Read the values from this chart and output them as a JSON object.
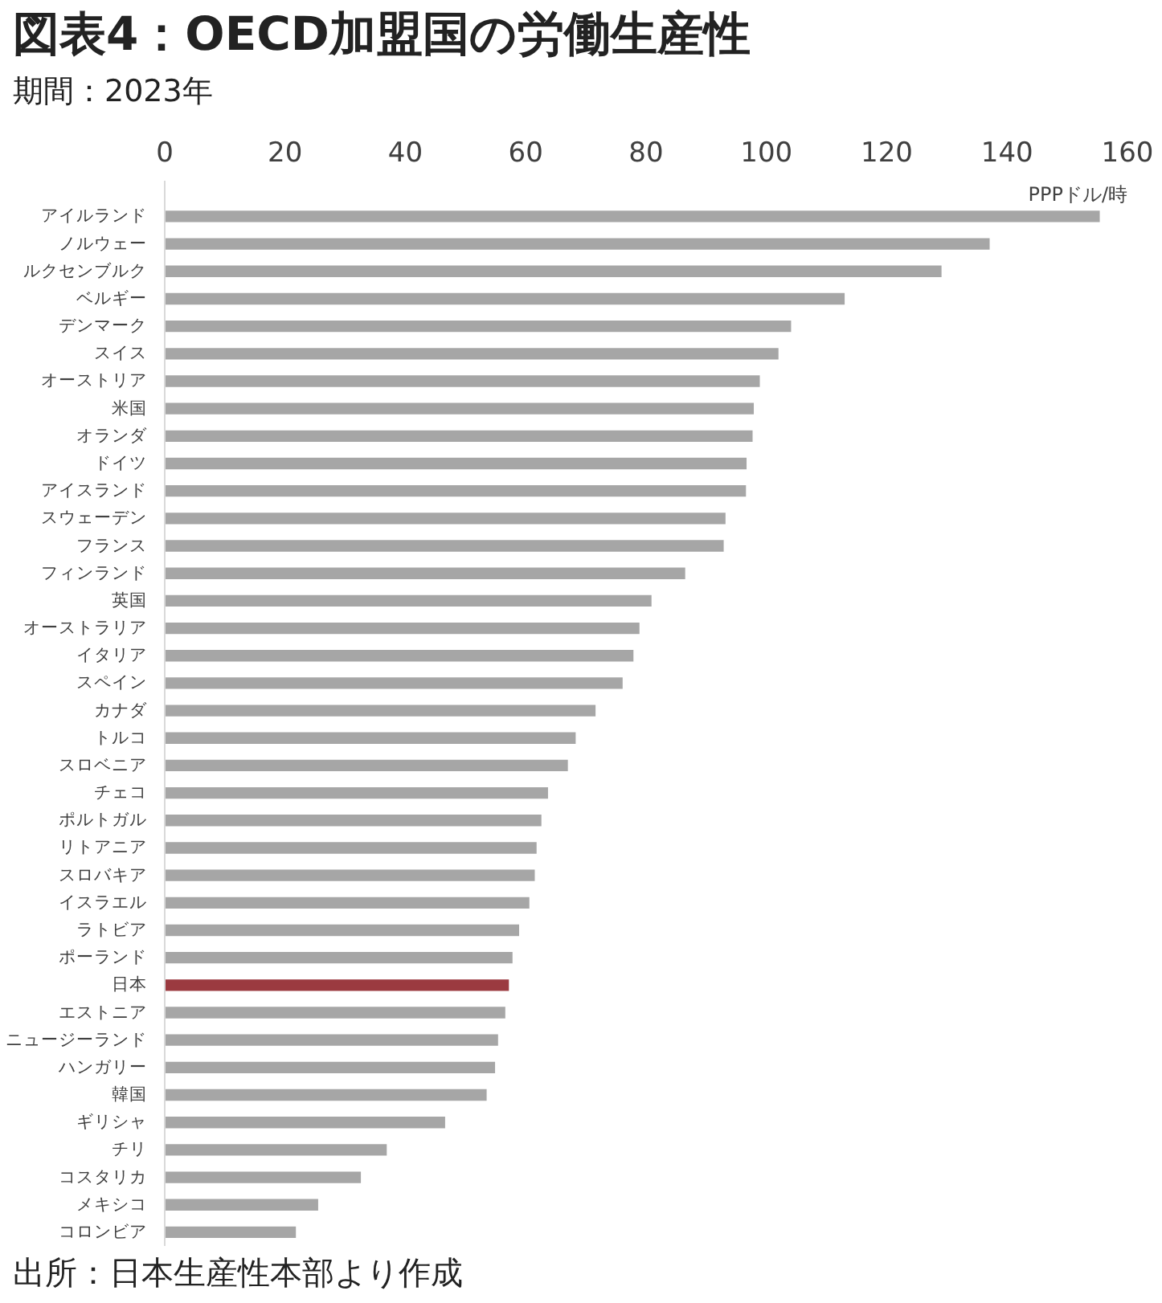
{
  "chart_data": {
    "type": "bar",
    "orientation": "horizontal",
    "title": "図表4：OECD加盟国の労働生産性",
    "subtitle": "期間：2023年",
    "xlabel": "PPPドル/時",
    "annotations": [
      "出所：日本生産性本部より作成"
    ],
    "categories": [
      "アイルランド",
      "ノルウェー",
      "ルクセンブルク",
      "ベルギー",
      "デンマーク",
      "スイス",
      "オーストリア",
      "米国",
      "オランダ",
      "ドイツ",
      "アイスランド",
      "スウェーデン",
      "フランス",
      "フィンランド",
      "英国",
      "オーストラリア",
      "イタリア",
      "スペイン",
      "カナダ",
      "トルコ",
      "スロベニア",
      "チェコ",
      "ポルトガル",
      "リトアニア",
      "スロバキア",
      "イスラエル",
      "ラトビア",
      "ポーランド",
      "日本",
      "エストニア",
      "ニュージーランド",
      "ハンガリー",
      "韓国",
      "ギリシャ",
      "チリ",
      "コスタリカ",
      "メキシコ",
      "コロンビア"
    ],
    "values": [
      155.4,
      137.1,
      129.1,
      113.0,
      104.1,
      102.0,
      98.9,
      97.9,
      97.7,
      96.7,
      96.6,
      93.2,
      92.9,
      86.5,
      80.9,
      78.9,
      77.9,
      76.1,
      71.6,
      68.3,
      67.0,
      63.7,
      62.6,
      61.8,
      61.5,
      60.6,
      58.9,
      57.8,
      57.2,
      56.6,
      55.4,
      54.9,
      53.5,
      46.6,
      36.9,
      32.6,
      25.5,
      21.8
    ],
    "colors": [
      "#a6a6a6",
      "#a6a6a6",
      "#a6a6a6",
      "#a6a6a6",
      "#a6a6a6",
      "#a6a6a6",
      "#a6a6a6",
      "#a6a6a6",
      "#a6a6a6",
      "#a6a6a6",
      "#a6a6a6",
      "#a6a6a6",
      "#a6a6a6",
      "#a6a6a6",
      "#a6a6a6",
      "#a6a6a6",
      "#a6a6a6",
      "#a6a6a6",
      "#a6a6a6",
      "#a6a6a6",
      "#a6a6a6",
      "#a6a6a6",
      "#a6a6a6",
      "#a6a6a6",
      "#a6a6a6",
      "#a6a6a6",
      "#a6a6a6",
      "#a6a6a6",
      "#9b3a40",
      "#a6a6a6",
      "#a6a6a6",
      "#a6a6a6",
      "#a6a6a6",
      "#a6a6a6",
      "#a6a6a6",
      "#a6a6a6",
      "#a6a6a6",
      "#a6a6a6"
    ],
    "xlim": [
      0,
      160
    ],
    "xticks": [
      0,
      20,
      40,
      60,
      80,
      100,
      120,
      140,
      160
    ]
  }
}
